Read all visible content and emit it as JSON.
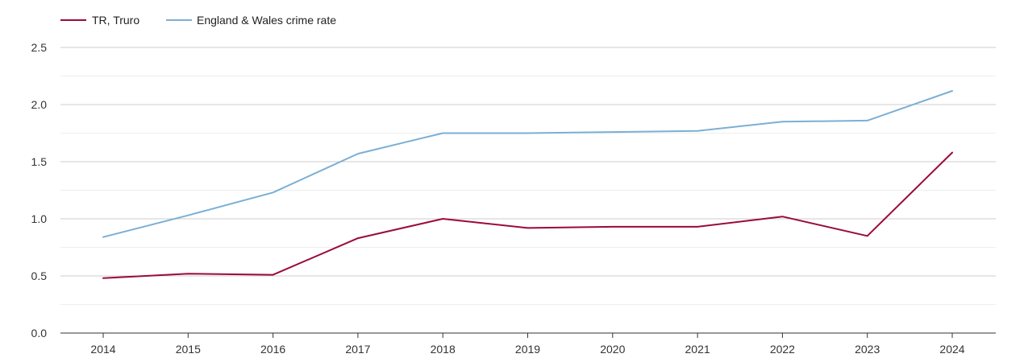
{
  "chart_data": {
    "type": "line",
    "title": "",
    "xlabel": "",
    "ylabel": "",
    "categories": [
      "2014",
      "2015",
      "2016",
      "2017",
      "2018",
      "2019",
      "2020",
      "2021",
      "2022",
      "2023",
      "2024"
    ],
    "ylim": [
      0,
      2.5
    ],
    "yticks": [
      "0.0",
      "0.5",
      "1.0",
      "1.5",
      "2.0",
      "2.5"
    ],
    "grid": true,
    "legend_position": "top-left",
    "series": [
      {
        "name": "TR, Truro",
        "color": "#9b0a3a",
        "values": [
          0.48,
          0.52,
          0.51,
          0.83,
          1.0,
          0.92,
          0.93,
          0.93,
          1.02,
          0.85,
          1.58
        ]
      },
      {
        "name": "England & Wales crime rate",
        "color": "#7bafd4",
        "values": [
          0.84,
          1.03,
          1.23,
          1.57,
          1.75,
          1.75,
          1.76,
          1.77,
          1.85,
          1.86,
          2.12
        ]
      }
    ]
  }
}
